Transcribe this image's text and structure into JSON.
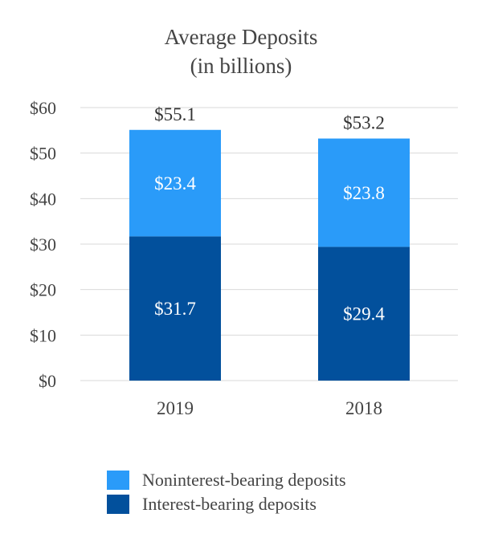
{
  "chart_data": {
    "type": "bar",
    "stacked": true,
    "title": [
      "Average Deposits",
      "(in billions)"
    ],
    "categories": [
      "2019",
      "2018"
    ],
    "series": [
      {
        "name": "Interest-bearing deposits",
        "values": [
          31.7,
          29.4
        ],
        "labels": [
          "$31.7",
          "$29.4"
        ],
        "color": "#02509c"
      },
      {
        "name": "Noninterest-bearing deposits",
        "values": [
          23.4,
          23.8
        ],
        "labels": [
          "$23.4",
          "$23.8"
        ],
        "color": "#2a9bf9"
      }
    ],
    "totals": [
      55.1,
      53.2
    ],
    "total_labels": [
      "$55.1",
      "$53.2"
    ],
    "ylim": [
      0,
      60
    ],
    "yticks": [
      0,
      10,
      20,
      30,
      40,
      50,
      60
    ],
    "ytick_labels": [
      "$0",
      "$10",
      "$20",
      "$30",
      "$40",
      "$50",
      "$60"
    ],
    "xlabel": "",
    "ylabel": "",
    "grid": true,
    "legend": [
      "Noninterest-bearing deposits",
      "Interest-bearing deposits"
    ],
    "legend_placement": "bottom"
  }
}
